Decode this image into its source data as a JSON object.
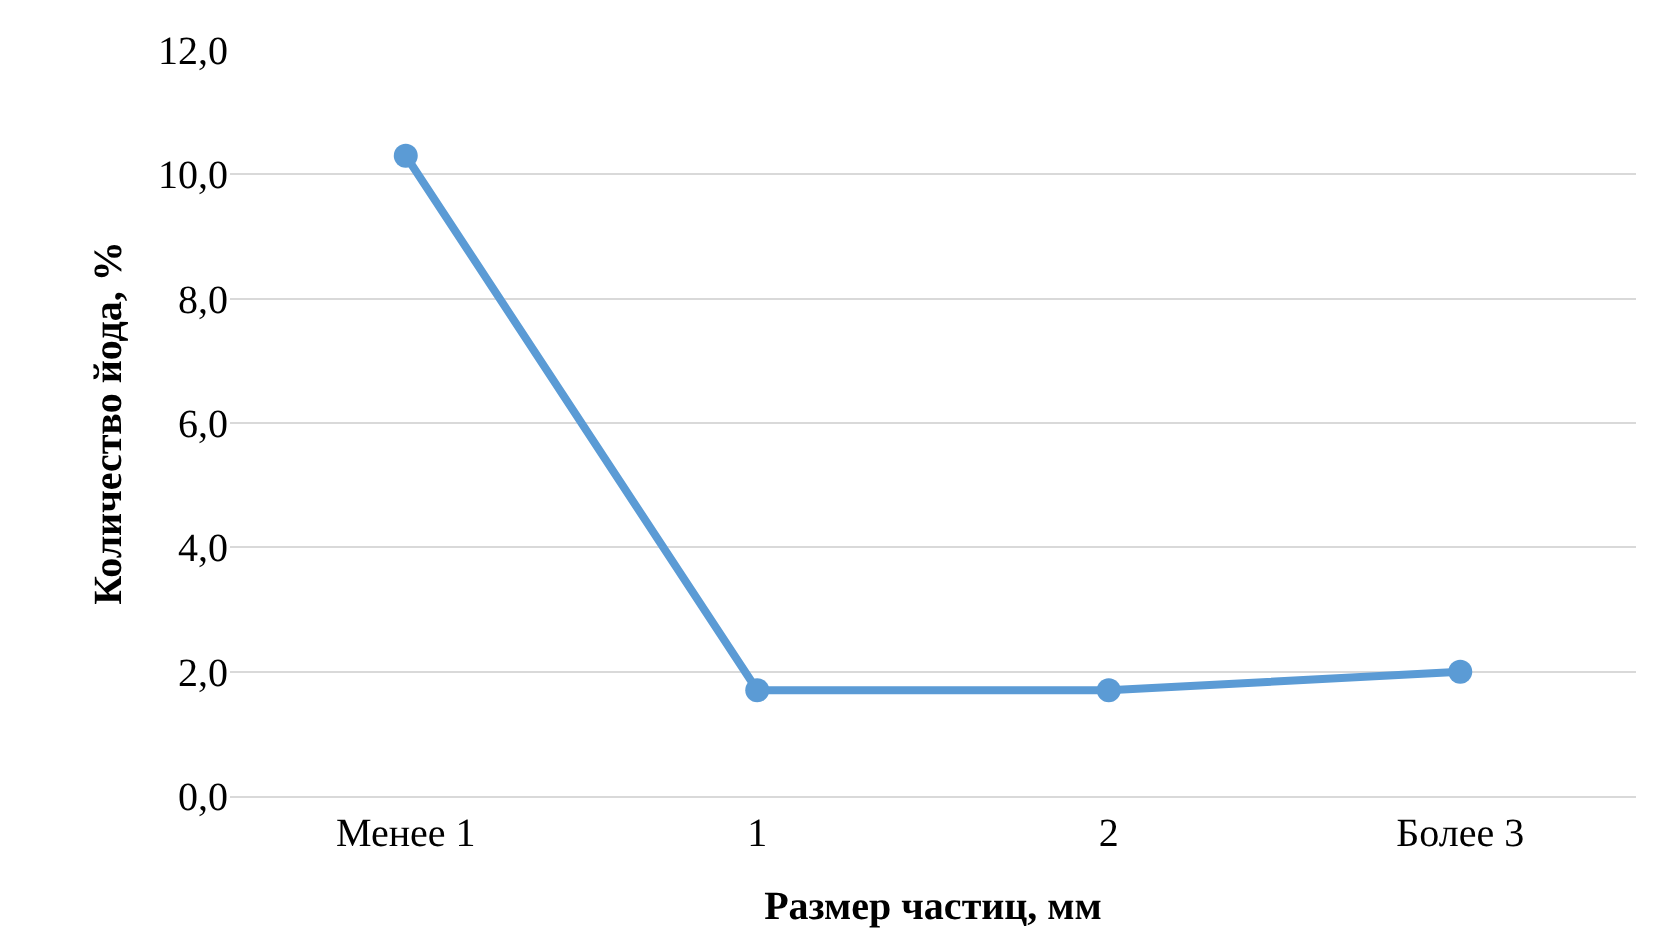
{
  "chart_data": {
    "type": "line",
    "xlabel": "Размер частиц, мм",
    "ylabel": "Количество йода, %",
    "categories": [
      "Менее 1",
      "1",
      "2",
      "Более 3"
    ],
    "series": [
      {
        "color": "#5b9bd5",
        "values": [
          10.3,
          1.7,
          1.7,
          2.0
        ]
      }
    ],
    "ylim": [
      0,
      12
    ],
    "yticks": [
      {
        "value": 0,
        "label": "0,0"
      },
      {
        "value": 2,
        "label": "2,0"
      },
      {
        "value": 4,
        "label": "4,0"
      },
      {
        "value": 6,
        "label": "6,0"
      },
      {
        "value": 8,
        "label": "8,0"
      },
      {
        "value": 10,
        "label": "10,0"
      },
      {
        "value": 12,
        "label": "12,0"
      }
    ],
    "grid": "y",
    "marker": "circle",
    "line_style": "solid",
    "legend": false
  }
}
